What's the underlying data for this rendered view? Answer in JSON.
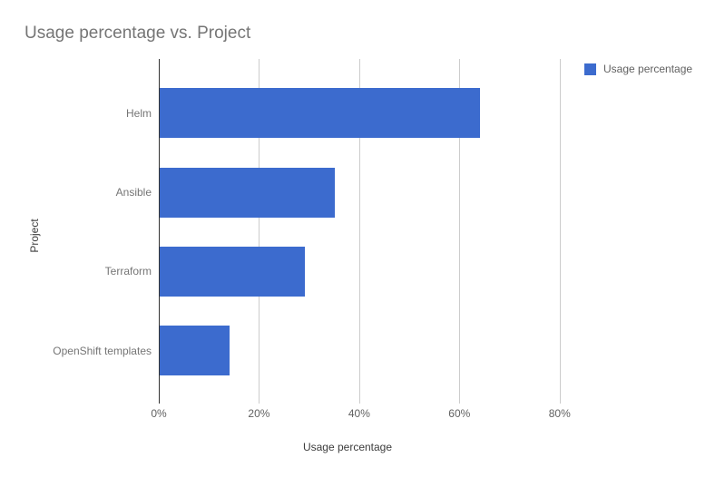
{
  "chart_data": {
    "type": "bar",
    "orientation": "horizontal",
    "title": "Usage percentage vs. Project",
    "xlabel": "Usage percentage",
    "ylabel": "Project",
    "categories": [
      "Helm",
      "Ansible",
      "Terraform",
      "OpenShift templates"
    ],
    "series": [
      {
        "name": "Usage percentage",
        "color": "#3c6bce",
        "values": [
          64,
          35,
          29,
          14
        ]
      }
    ],
    "x_ticks": [
      {
        "value": 0,
        "label": "0%"
      },
      {
        "value": 20,
        "label": "20%"
      },
      {
        "value": 40,
        "label": "40%"
      },
      {
        "value": 60,
        "label": "60%"
      },
      {
        "value": 80,
        "label": "80%"
      }
    ],
    "xlim": [
      0,
      82.4
    ],
    "grid": "vertical",
    "legend_position": "top-right",
    "value_format": "percent"
  },
  "legend": {
    "items": [
      {
        "label": "Usage percentage",
        "color": "#3c6bce"
      }
    ]
  },
  "colors": {
    "bar": "#3c6bce",
    "title_text": "#757575",
    "axis_title_text": "#3c3c3c",
    "tick_text": "#616161",
    "category_text": "#757575",
    "gridline": "#cccccc",
    "axis_line": "#333333",
    "background": "#ffffff"
  }
}
